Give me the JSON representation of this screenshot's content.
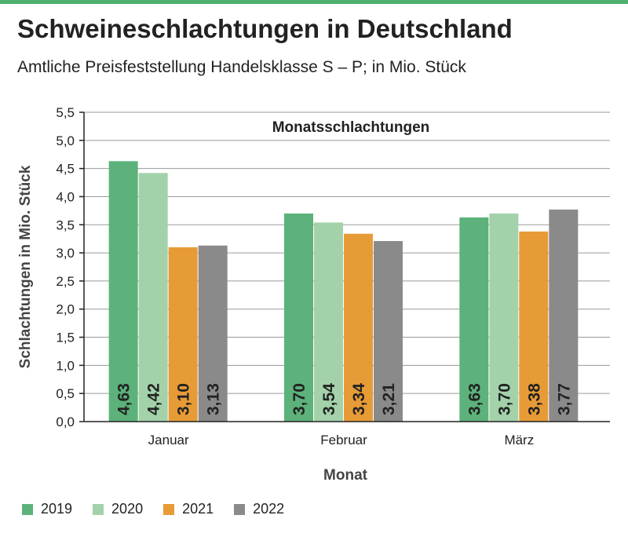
{
  "header": {
    "title": "Schweineschlachtungen in Deutschland",
    "subtitle": "Amtliche Preisfeststellung Handelsklasse S – P; in Mio. Stück"
  },
  "chart_data": {
    "type": "bar",
    "title": "Monatsschlachtungen",
    "xlabel": "Monat",
    "ylabel": "Schlachtungen in Mio. Stück",
    "ylim": [
      0,
      5.5
    ],
    "yticks": [
      "0,0",
      "0,5",
      "1,0",
      "1,5",
      "2,0",
      "2,5",
      "3,0",
      "3,5",
      "4,0",
      "4,5",
      "5,0",
      "5,5"
    ],
    "grid": true,
    "legend_position": "bottom-left",
    "categories": [
      "Januar",
      "Februar",
      "März"
    ],
    "series": [
      {
        "name": "2019",
        "color": "#5cb27a",
        "values": [
          4.63,
          3.7,
          3.63
        ],
        "labels": [
          "4,63",
          "3,70",
          "3,63"
        ]
      },
      {
        "name": "2020",
        "color": "#a3d2aa",
        "values": [
          4.42,
          3.54,
          3.7
        ],
        "labels": [
          "4,42",
          "3,54",
          "3,70"
        ]
      },
      {
        "name": "2021",
        "color": "#e79b36",
        "values": [
          3.1,
          3.34,
          3.38
        ],
        "labels": [
          "3,10",
          "3,34",
          "3,38"
        ]
      },
      {
        "name": "2022",
        "color": "#8a8a8a",
        "values": [
          3.13,
          3.21,
          3.77
        ],
        "labels": [
          "3,13",
          "3,21",
          "3,77"
        ]
      }
    ]
  }
}
